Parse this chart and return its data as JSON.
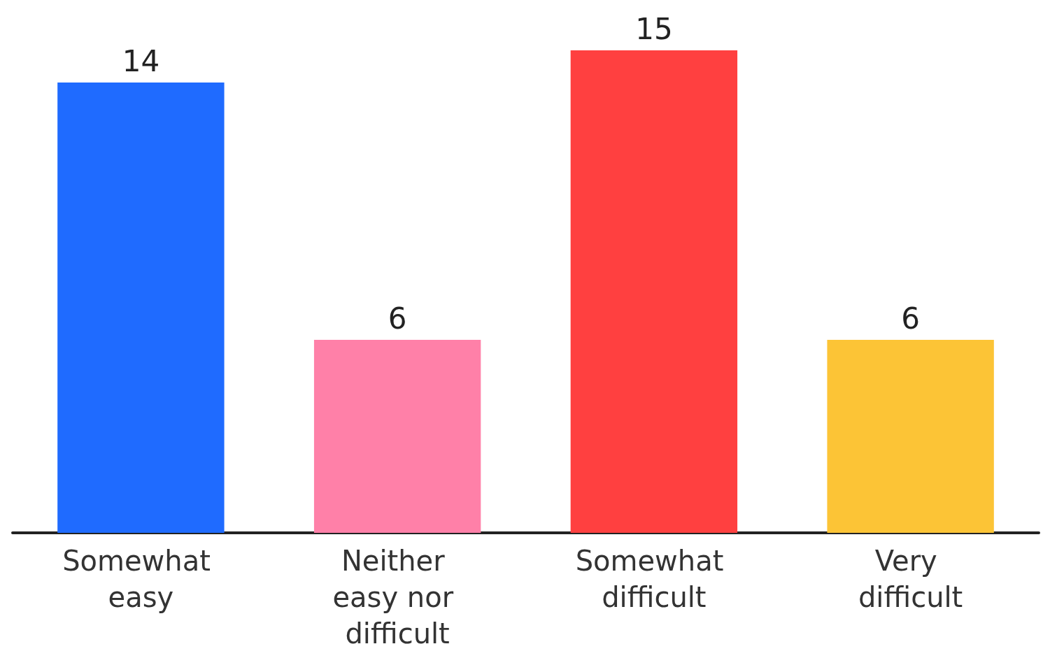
{
  "chart_data": {
    "type": "bar",
    "categories": [
      "Somewhat easy",
      "Neither easy nor difficult",
      "Somewhat difficult",
      "Very difficult"
    ],
    "values": [
      14,
      6,
      15,
      6
    ],
    "colors": [
      "#1f6bff",
      "#ff80a8",
      "#ff4040",
      "#fcc436"
    ],
    "data_labels": true
  }
}
